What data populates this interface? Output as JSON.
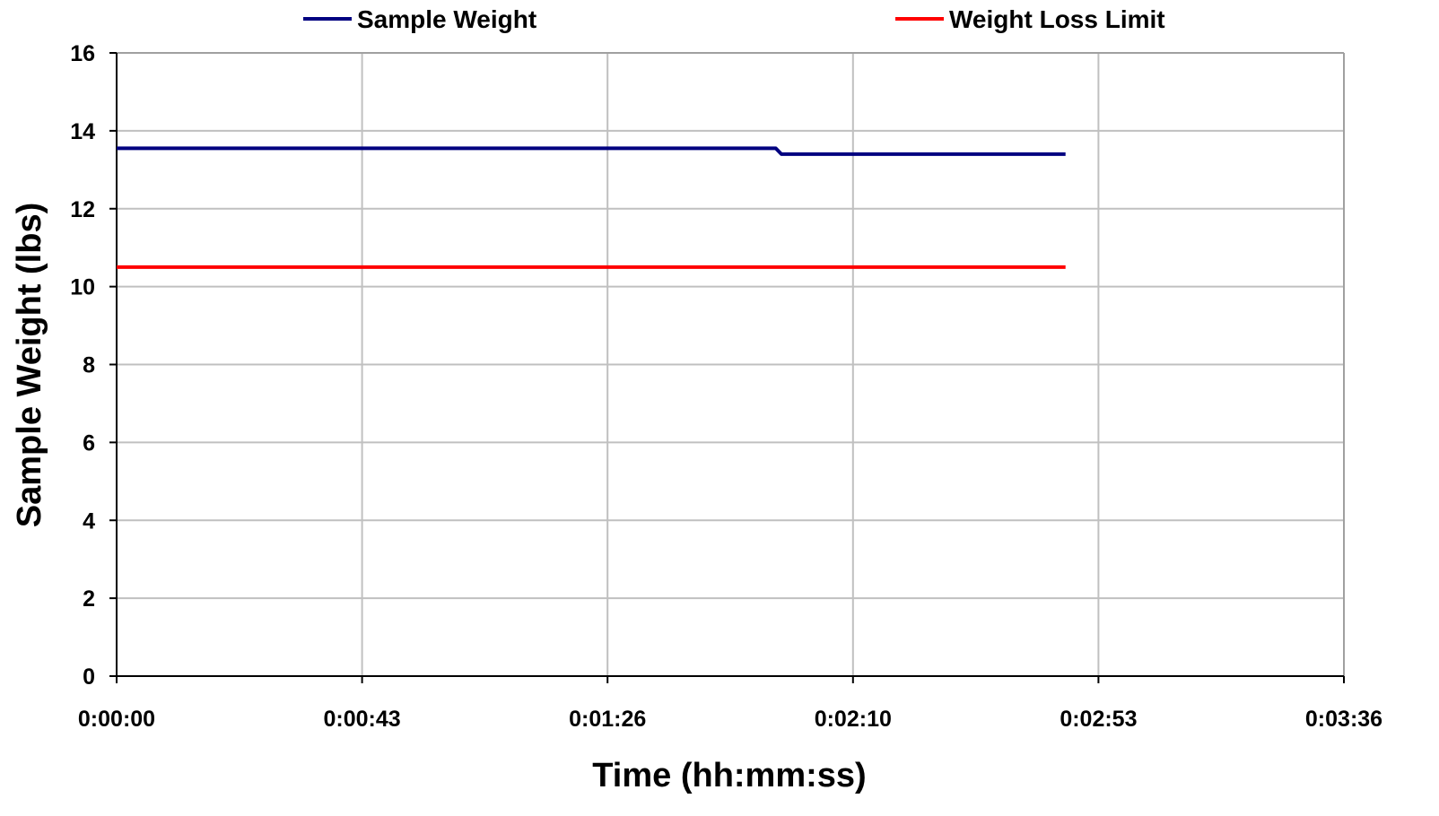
{
  "chart_data": {
    "type": "line",
    "xlabel": "Time (hh:mm:ss)",
    "ylabel": "Sample Weight (lbs)",
    "xlim": [
      "0:00:00",
      "0:03:36"
    ],
    "ylim": [
      0,
      16
    ],
    "x_ticks": [
      "0:00:00",
      "0:00:43",
      "0:01:26",
      "0:02:10",
      "0:02:53",
      "0:03:36"
    ],
    "y_ticks": [
      "0",
      "2",
      "4",
      "6",
      "8",
      "10",
      "12",
      "14",
      "16"
    ],
    "grid": true,
    "legend_position": "top",
    "series": [
      {
        "name": "Sample Weight",
        "color": "#000080",
        "x": [
          "0:00:00",
          "0:01:56",
          "0:01:57",
          "0:02:47"
        ],
        "y": [
          13.55,
          13.55,
          13.4,
          13.4
        ]
      },
      {
        "name": "Weight Loss Limit",
        "color": "#ff0000",
        "x": [
          "0:00:00",
          "0:02:47"
        ],
        "y": [
          10.5,
          10.5
        ]
      }
    ]
  }
}
